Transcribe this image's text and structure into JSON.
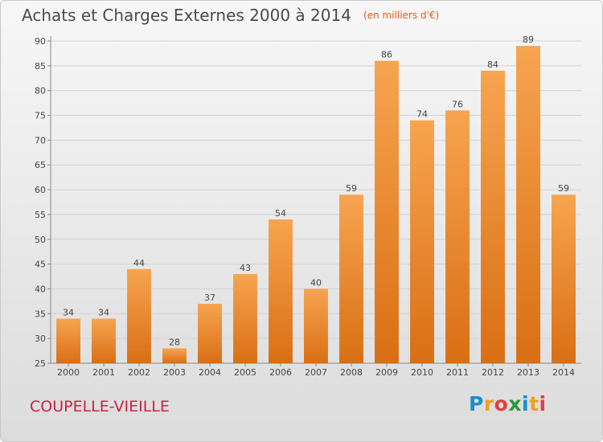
{
  "chart_data": {
    "type": "bar",
    "title": "Achats et Charges Externes 2000 à 2014",
    "unit": "(en milliers d'€)",
    "categories": [
      "2000",
      "2001",
      "2002",
      "2003",
      "2004",
      "2005",
      "2006",
      "2007",
      "2008",
      "2009",
      "2010",
      "2011",
      "2012",
      "2013",
      "2014"
    ],
    "values": [
      34,
      34,
      44,
      28,
      37,
      43,
      54,
      40,
      59,
      86,
      74,
      76,
      84,
      89,
      59
    ],
    "ylim": [
      25,
      90
    ],
    "yticks": [
      25,
      30,
      35,
      40,
      45,
      50,
      55,
      60,
      65,
      70,
      75,
      80,
      85,
      90
    ],
    "grid": true,
    "bar_color": "#f0902e"
  },
  "footer": {
    "commune": "COUPELLE-VIEILLE",
    "logo_letters": [
      "P",
      "r",
      "o",
      "x",
      "i",
      "t",
      "i"
    ],
    "logo_colors": [
      "#1a8fd0",
      "#f0a020",
      "#e04040",
      "#2a9a3a",
      "#1a8fd0",
      "#f0a020",
      "#e04040"
    ]
  }
}
